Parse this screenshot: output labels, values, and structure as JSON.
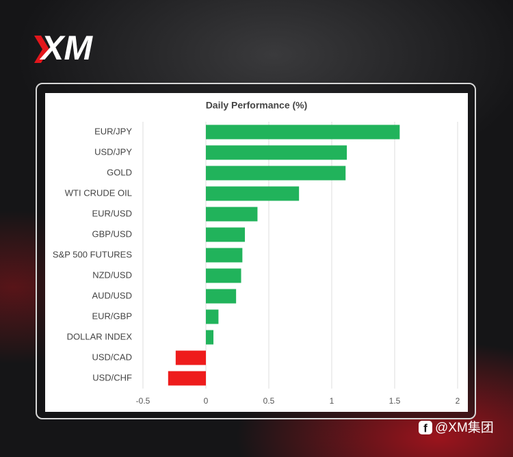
{
  "logo": "XM",
  "footer_handle": "@XM集团",
  "chart_data": {
    "type": "hbar",
    "title": "Daily Performance (%)",
    "categories": [
      "EUR/JPY",
      "USD/JPY",
      "GOLD",
      "WTI CRUDE OIL",
      "EUR/USD",
      "GBP/USD",
      "S&P 500 FUTURES",
      "NZD/USD",
      "AUD/USD",
      "EUR/GBP",
      "DOLLAR INDEX",
      "USD/CAD",
      "USD/CHF"
    ],
    "values": [
      1.54,
      1.12,
      1.11,
      0.74,
      0.41,
      0.31,
      0.29,
      0.28,
      0.24,
      0.1,
      0.06,
      -0.24,
      -0.3
    ],
    "color": "#21b35b",
    "negative_color": "#ee1c1c",
    "xlim": [
      -0.5,
      2
    ],
    "xticks": [
      -0.5,
      0,
      0.5,
      1,
      1.5,
      2
    ],
    "grid": true
  }
}
